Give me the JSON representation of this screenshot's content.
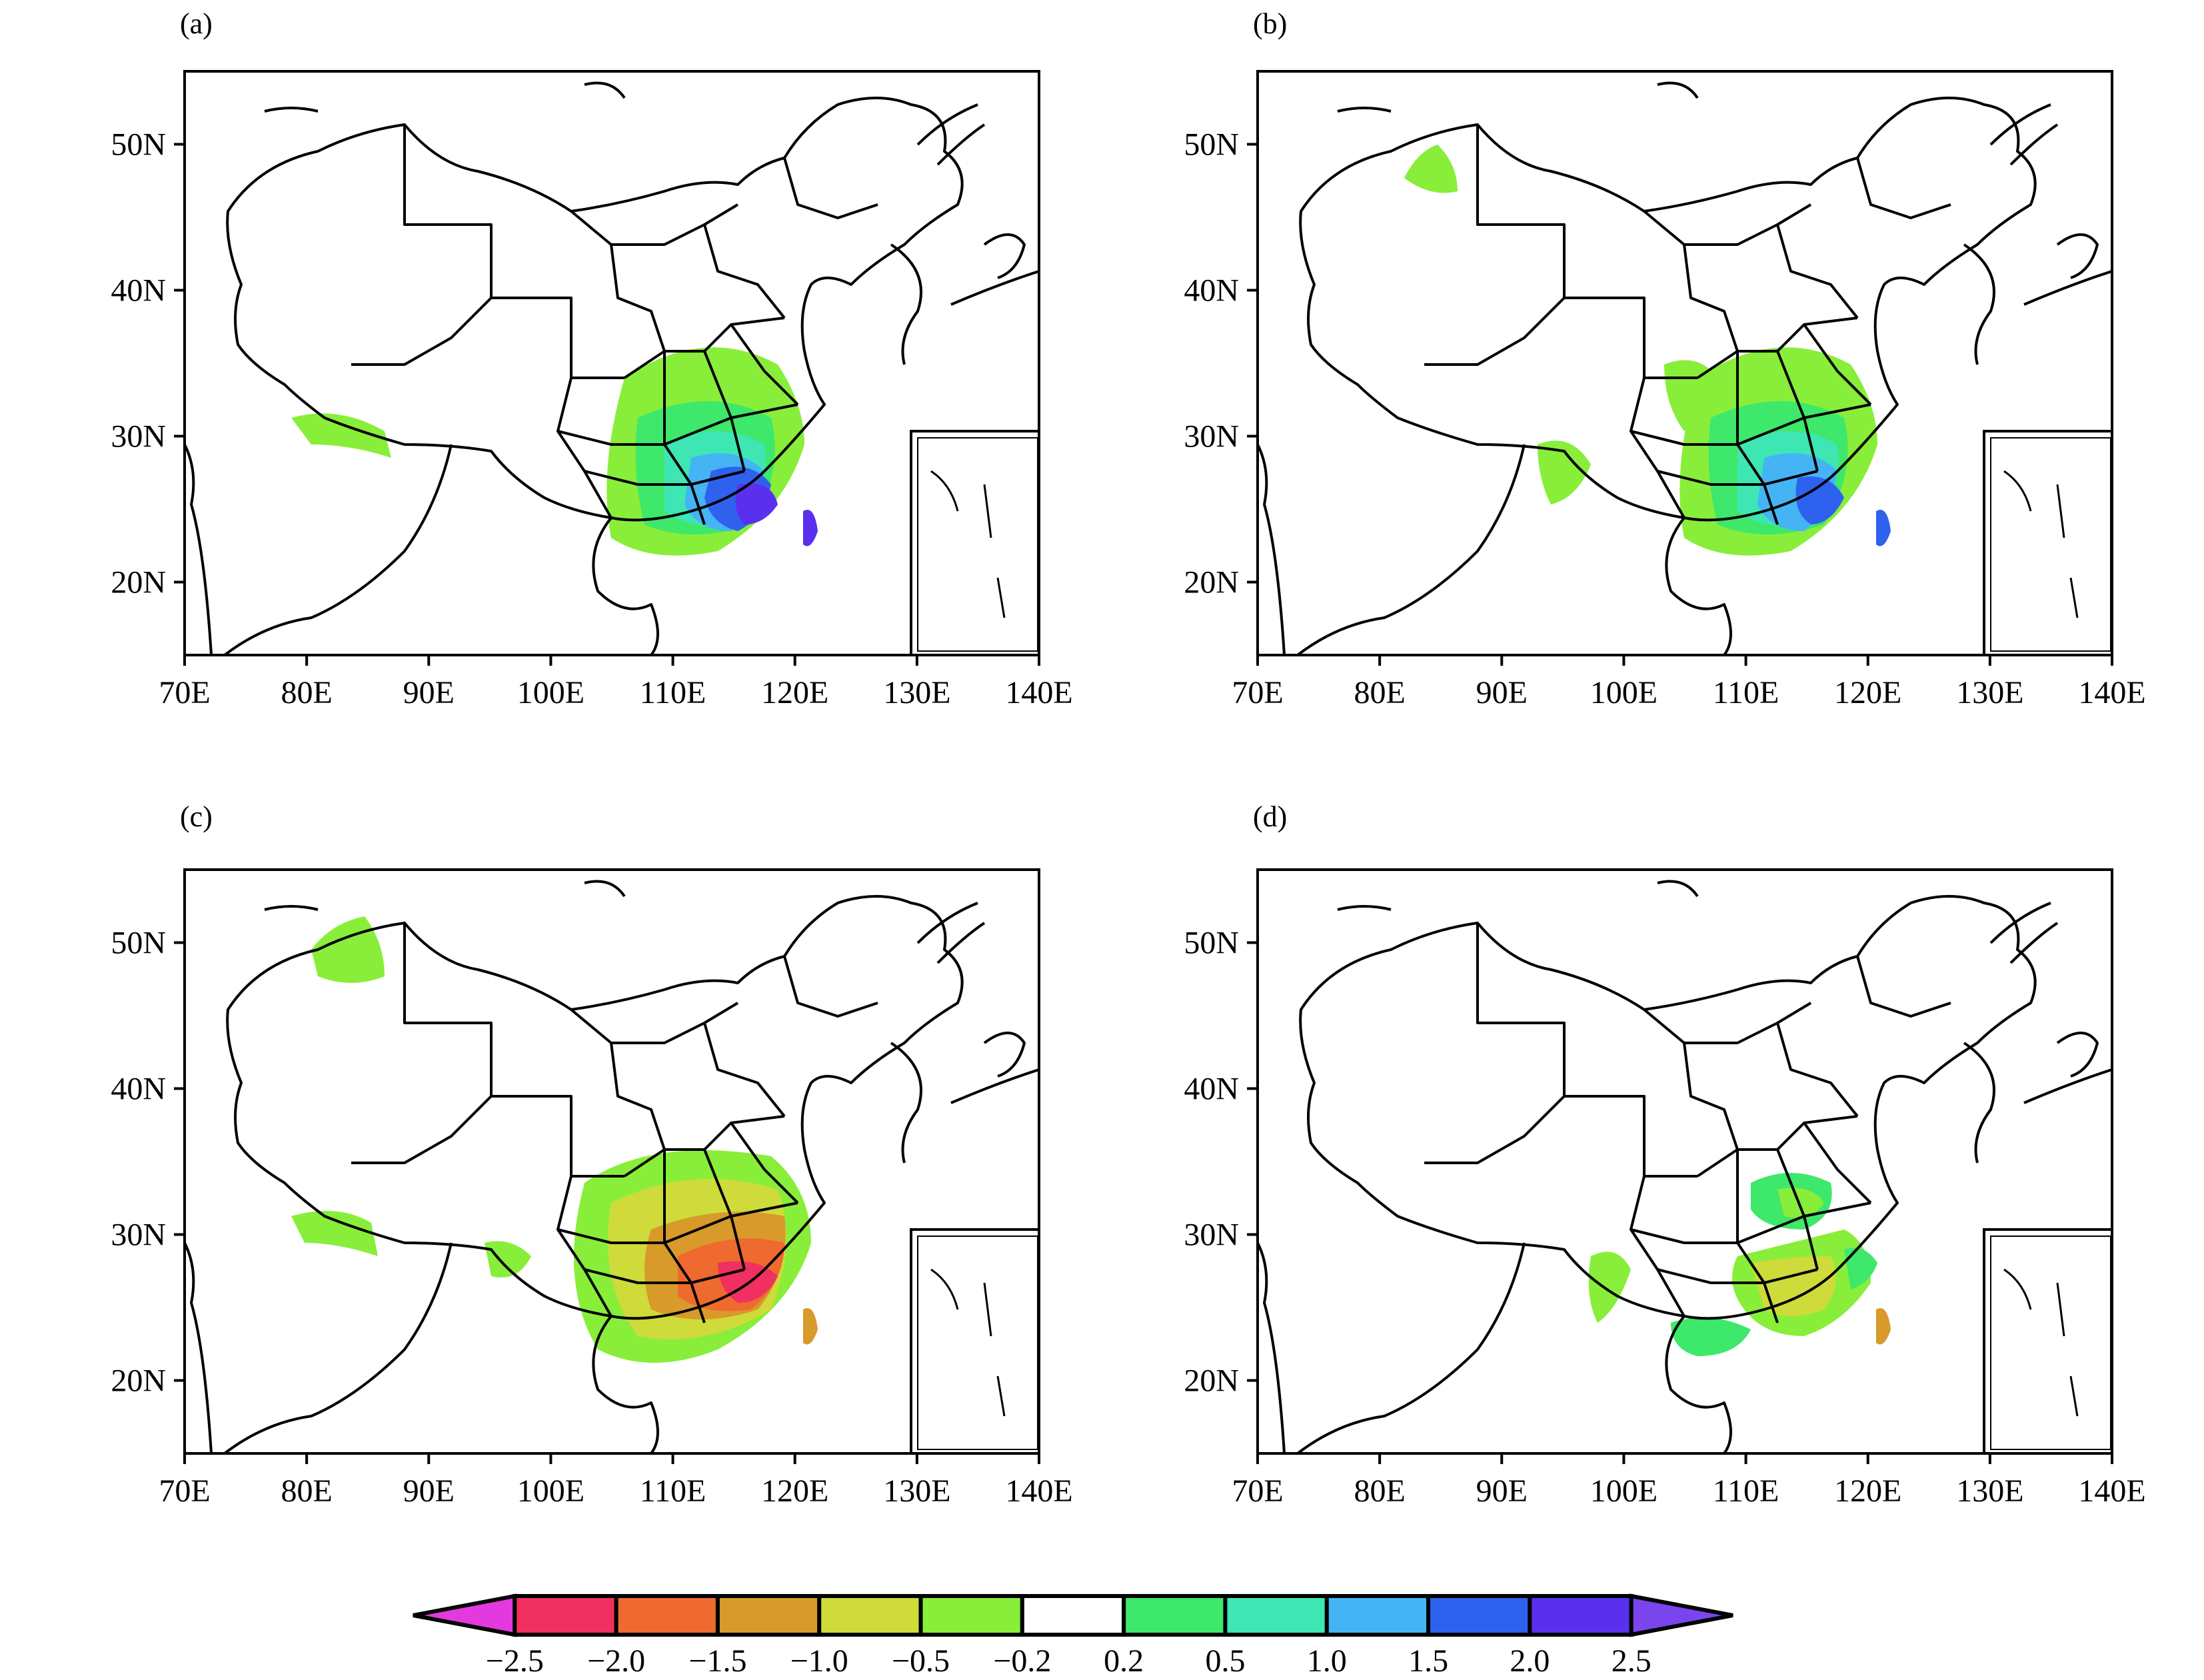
{
  "figure": {
    "panels": [
      {
        "id": "a",
        "label": "(a)",
        "pattern": "positive-strong"
      },
      {
        "id": "b",
        "label": "(b)",
        "pattern": "positive-moderate"
      },
      {
        "id": "c",
        "label": "(c)",
        "pattern": "negative"
      },
      {
        "id": "d",
        "label": "(d)",
        "pattern": "mixed-weak"
      }
    ],
    "x_ticks": [
      "70E",
      "80E",
      "90E",
      "100E",
      "110E",
      "120E",
      "130E",
      "140E"
    ],
    "y_ticks": [
      "20N",
      "30N",
      "40N",
      "50N"
    ],
    "x_range_deg": [
      70,
      140
    ],
    "y_range_deg": [
      15,
      55
    ],
    "colorbar": {
      "tick_labels": [
        "−2.5",
        "−2.0",
        "−1.5",
        "−1.0",
        "−0.5",
        "−0.2",
        "0.2",
        "0.5",
        "1.0",
        "1.5",
        "2.0",
        "2.5"
      ],
      "colors": [
        "#e23adf",
        "#f03060",
        "#ee6a2e",
        "#d89a2a",
        "#cedb3a",
        "#88ee3a",
        "#ffffff",
        "#3ee86a",
        "#3ee6b4",
        "#44b4f4",
        "#2e62ee",
        "#5a30ee",
        "#7a44ee"
      ]
    }
  }
}
